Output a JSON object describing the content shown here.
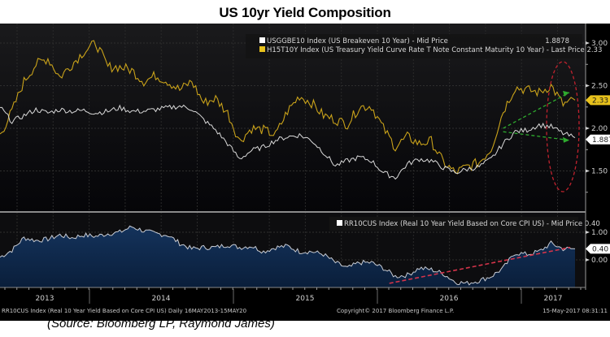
{
  "title": "US 10yr Yield Composition",
  "source": "(Source: Bloomberg LP, Raymond James)",
  "footer": {
    "left": "RR10CUS Index (Real 10 Year Yield Based on Core CPI US)  Daily 16MAY2013-15MAY20",
    "center": "Copyright© 2017 Bloomberg Finance L.P.",
    "right": "15-May-2017 08:31:11"
  },
  "colors": {
    "background": "#000000",
    "breakeven": "#d9d9d9",
    "nominal": "#c9a21a",
    "real_fill": "#0f2a4d",
    "real_line": "#c8ccd4",
    "annotation_green": "#2eaa2e",
    "annotation_red": "#c0222e",
    "price_tag_yellow": "#e8c21c",
    "price_tag_white": "#ffffff"
  },
  "chart_data": [
    {
      "type": "line",
      "title": "US 10yr Yield Composition",
      "panel": "upper",
      "xlabel": "",
      "ylabel": "",
      "x_ticks": [
        "2013",
        "2014",
        "2015",
        "2016",
        "2017"
      ],
      "x_range": [
        "2013-05-16",
        "2017-05-15"
      ],
      "ylim": [
        1.0,
        3.2
      ],
      "y_ticks": [
        1.5,
        2.0,
        2.5,
        3.0
      ],
      "y_tick_labels": [
        "1.50",
        "2.00",
        "2.50",
        "3.00"
      ],
      "grid": true,
      "legend_position": "top-right",
      "x_months": [
        "2013-05",
        "2013-06",
        "2013-07",
        "2013-08",
        "2013-09",
        "2013-10",
        "2013-11",
        "2013-12",
        "2014-01",
        "2014-02",
        "2014-03",
        "2014-04",
        "2014-05",
        "2014-06",
        "2014-07",
        "2014-08",
        "2014-09",
        "2014-10",
        "2014-11",
        "2014-12",
        "2015-01",
        "2015-02",
        "2015-03",
        "2015-04",
        "2015-05",
        "2015-06",
        "2015-07",
        "2015-08",
        "2015-09",
        "2015-10",
        "2015-11",
        "2015-12",
        "2016-01",
        "2016-02",
        "2016-03",
        "2016-04",
        "2016-05",
        "2016-06",
        "2016-07",
        "2016-08",
        "2016-09",
        "2016-10",
        "2016-11",
        "2016-12",
        "2017-01",
        "2017-02",
        "2017-03",
        "2017-04",
        "2017-05"
      ],
      "series": [
        {
          "name": "USGGBE10 Index (US Breakeven 10 Year) - Mid Price",
          "legend_label": "USGGBE10 Index (US Breakeven 10 Year) - Mid Price",
          "last_value_label": "1.8878",
          "last_value": 1.8878,
          "values": [
            2.25,
            2.08,
            2.15,
            2.22,
            2.18,
            2.22,
            2.2,
            2.21,
            2.18,
            2.2,
            2.24,
            2.2,
            2.2,
            2.22,
            2.24,
            2.26,
            2.23,
            2.1,
            1.98,
            1.82,
            1.64,
            1.74,
            1.78,
            1.86,
            1.9,
            1.92,
            1.86,
            1.72,
            1.56,
            1.62,
            1.66,
            1.62,
            1.48,
            1.42,
            1.58,
            1.64,
            1.62,
            1.54,
            1.48,
            1.52,
            1.55,
            1.64,
            1.82,
            1.96,
            1.98,
            2.04,
            2.02,
            1.94,
            1.89
          ]
        },
        {
          "name": "H15T10Y Index (US Treasury Yield Curve Rate T Note Constant Maturity 10 Year) - Last Price",
          "legend_label": "H15T10Y Index (US Treasury Yield Curve Rate T Note Constant Maturity 10 Year) - Last Price 2.33",
          "last_value_label": "2.33",
          "last_value": 2.33,
          "values": [
            1.92,
            2.2,
            2.55,
            2.75,
            2.82,
            2.6,
            2.75,
            2.9,
            3.0,
            2.72,
            2.72,
            2.68,
            2.55,
            2.62,
            2.55,
            2.45,
            2.55,
            2.3,
            2.35,
            2.18,
            1.85,
            2.0,
            1.98,
            1.92,
            2.2,
            2.38,
            2.3,
            2.15,
            2.1,
            2.05,
            2.25,
            2.26,
            2.0,
            1.78,
            1.9,
            1.82,
            1.85,
            1.6,
            1.48,
            1.55,
            1.6,
            1.76,
            2.2,
            2.48,
            2.45,
            2.42,
            2.5,
            2.28,
            2.33
          ]
        }
      ],
      "annotations": [
        {
          "type": "dashed-arrow",
          "color": "green",
          "description": "rising trend in nominal 10yr yield since Nov 2016"
        },
        {
          "type": "dashed-arrow",
          "color": "green",
          "description": "declining trend in 10yr breakeven since Nov 2016"
        },
        {
          "type": "dashed-ellipse",
          "color": "red",
          "description": "highlight of recent divergence"
        }
      ]
    },
    {
      "type": "area",
      "panel": "lower",
      "xlabel": "",
      "ylabel": "",
      "x_ticks": [
        "2013",
        "2014",
        "2015",
        "2016",
        "2017"
      ],
      "ylim": [
        -1.0,
        1.6
      ],
      "y_ticks": [
        0.0,
        1.0
      ],
      "y_tick_labels": [
        "0.00",
        "1.00"
      ],
      "grid": true,
      "legend_position": "top-right",
      "series": [
        {
          "name": "RR10CUS Index (Real 10 Year Yield Based on Core CPI US) - Mid Price",
          "legend_label": "RR10CUS Index (Real 10 Year Yield Based on Core CPI US) - Mid Price 0.40",
          "last_value_label": "0.40",
          "last_value": 0.4,
          "values": [
            0.1,
            0.35,
            0.8,
            0.7,
            0.75,
            0.9,
            0.8,
            0.9,
            0.85,
            0.95,
            1.0,
            1.2,
            1.05,
            0.95,
            0.9,
            0.6,
            0.4,
            0.45,
            0.45,
            0.55,
            0.45,
            0.5,
            0.3,
            0.45,
            0.5,
            0.3,
            0.3,
            0.2,
            -0.1,
            -0.3,
            -0.1,
            -0.1,
            -0.3,
            -0.6,
            -0.55,
            -0.3,
            -0.35,
            -0.5,
            -0.8,
            -0.85,
            -0.75,
            -0.6,
            -0.3,
            0.25,
            0.2,
            0.3,
            0.6,
            0.4,
            0.4
          ]
        }
      ],
      "annotations": [
        {
          "type": "dashed-line",
          "color": "red",
          "description": "uptrend in real yield since early 2016"
        }
      ]
    }
  ]
}
